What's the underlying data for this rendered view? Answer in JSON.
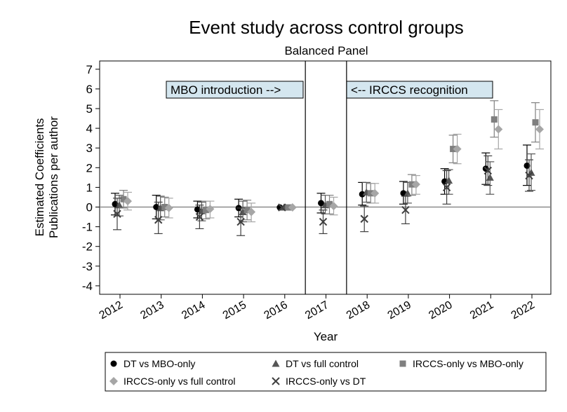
{
  "chart_data": {
    "type": "scatter",
    "title": "Event study across control groups",
    "subtitle": "Balanced Panel",
    "xlabel": "Year",
    "ylabel_lines": [
      "Estimated Coefficients",
      "Publications per author"
    ],
    "ylim": [
      -4.5,
      7.5
    ],
    "yticks": [
      7,
      6,
      5,
      4,
      3,
      2,
      1,
      0,
      -1,
      -2,
      -3,
      -4
    ],
    "categories": [
      "2012",
      "2013",
      "2014",
      "2015",
      "2016",
      "2017",
      "2018",
      "2019",
      "2020",
      "2021",
      "2022"
    ],
    "reference_line_y": 0,
    "vertical_lines_between": [
      [
        "2016",
        "2017"
      ],
      [
        "2017",
        "2018"
      ]
    ],
    "annotations": [
      {
        "text": "MBO introduction -->",
        "anchor": "left-panel-top-right"
      },
      {
        "text": "<-- IRCCS recognition",
        "anchor": "right-panel-top-left"
      }
    ],
    "series": [
      {
        "name": "DT vs MBO-only",
        "marker": "circle",
        "color": "#000000",
        "values": [
          0.15,
          0.0,
          -0.12,
          -0.05,
          -0.02,
          0.2,
          0.65,
          0.7,
          1.3,
          1.95,
          2.1
        ],
        "ci_low": [
          -0.4,
          -0.6,
          -0.55,
          -0.5,
          -0.02,
          -0.3,
          0.1,
          0.15,
          0.65,
          1.15,
          1.1
        ],
        "ci_high": [
          0.7,
          0.6,
          0.3,
          0.4,
          -0.02,
          0.7,
          1.25,
          1.3,
          1.95,
          2.75,
          3.15
        ]
      },
      {
        "name": "DT vs full control",
        "marker": "triangle",
        "color": "#555555",
        "values": [
          0.1,
          -0.05,
          -0.2,
          -0.25,
          -0.02,
          0.1,
          0.75,
          0.7,
          1.35,
          1.5,
          1.75
        ],
        "ci_low": [
          -0.45,
          -0.65,
          -0.7,
          -0.75,
          -0.02,
          -0.35,
          0.25,
          0.2,
          0.65,
          0.65,
          0.85
        ],
        "ci_high": [
          0.6,
          0.55,
          0.25,
          0.3,
          -0.02,
          0.6,
          1.25,
          1.25,
          1.9,
          2.3,
          2.7
        ]
      },
      {
        "name": "IRCCS-only vs MBO-only",
        "marker": "square",
        "color": "#7f7f7f",
        "values": [
          0.4,
          0.0,
          -0.15,
          -0.15,
          -0.02,
          0.15,
          0.7,
          1.15,
          2.95,
          4.45,
          4.3
        ],
        "ci_low": [
          -0.05,
          -0.5,
          -0.6,
          -0.65,
          -0.02,
          -0.35,
          0.2,
          0.6,
          2.25,
          3.55,
          3.3
        ],
        "ci_high": [
          0.85,
          0.5,
          0.3,
          0.35,
          -0.02,
          0.6,
          1.2,
          1.65,
          3.65,
          5.4,
          5.3
        ]
      },
      {
        "name": "IRCCS-only vs full control",
        "marker": "diamond",
        "color": "#a6a6a6",
        "values": [
          0.3,
          -0.05,
          -0.1,
          -0.25,
          -0.02,
          0.05,
          0.7,
          1.15,
          2.95,
          3.95,
          3.95
        ],
        "ci_low": [
          -0.15,
          -0.55,
          -0.55,
          -0.75,
          -0.02,
          -0.4,
          0.2,
          0.65,
          2.2,
          2.95,
          2.95
        ],
        "ci_high": [
          0.75,
          0.45,
          0.3,
          0.2,
          -0.02,
          0.5,
          1.2,
          1.6,
          3.7,
          4.95,
          4.95
        ]
      },
      {
        "name": "IRCCS-only vs DT",
        "marker": "x",
        "color": "#3f3f3f",
        "values": [
          -0.35,
          -0.65,
          -0.5,
          -0.75,
          -0.02,
          -0.75,
          -0.6,
          -0.15,
          1.0,
          1.85,
          1.6
        ],
        "ci_low": [
          -1.15,
          -1.35,
          -1.1,
          -1.45,
          -0.02,
          -1.35,
          -1.25,
          -0.85,
          0.15,
          1.1,
          0.8
        ],
        "ci_high": [
          0.45,
          0.25,
          0.1,
          -0.05,
          -0.02,
          -0.15,
          0.05,
          0.55,
          1.85,
          2.6,
          2.4
        ]
      }
    ],
    "legend": {
      "placement": "bottom",
      "entries": [
        "DT vs MBO-only",
        "DT vs full control",
        "IRCCS-only vs MBO-only",
        "IRCCS-only vs full control",
        "IRCCS-only vs DT"
      ]
    }
  }
}
